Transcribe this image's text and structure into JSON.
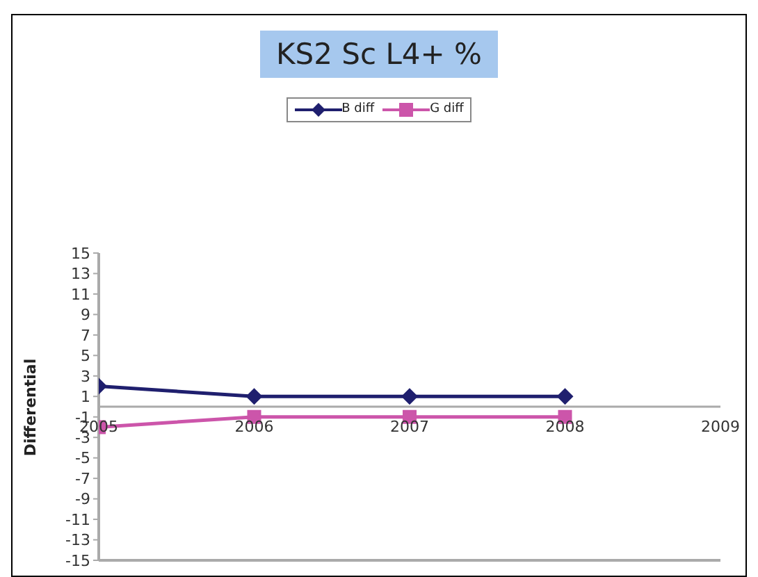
{
  "chart_data": {
    "type": "line",
    "title": "KS2 Sc L4+ %",
    "ylabel": "Differential",
    "x": [
      2005,
      2006,
      2007,
      2008
    ],
    "series": [
      {
        "name": "B diff",
        "color": "#1f1f6e",
        "values": [
          2,
          1,
          1,
          1
        ],
        "marker": "diamond"
      },
      {
        "name": "G diff",
        "color": "#cc55aa",
        "values": [
          -2,
          -1,
          -1,
          -1
        ],
        "marker": "square"
      }
    ],
    "xlim": [
      2005,
      2009
    ],
    "xticks": [
      2005,
      2006,
      2007,
      2008,
      2009
    ],
    "ylim": [
      -15,
      15
    ],
    "yticks": [
      -15,
      -13,
      -11,
      -9,
      -7,
      -5,
      -3,
      -1,
      1,
      3,
      5,
      7,
      9,
      11,
      13,
      15
    ],
    "legend": "top"
  }
}
